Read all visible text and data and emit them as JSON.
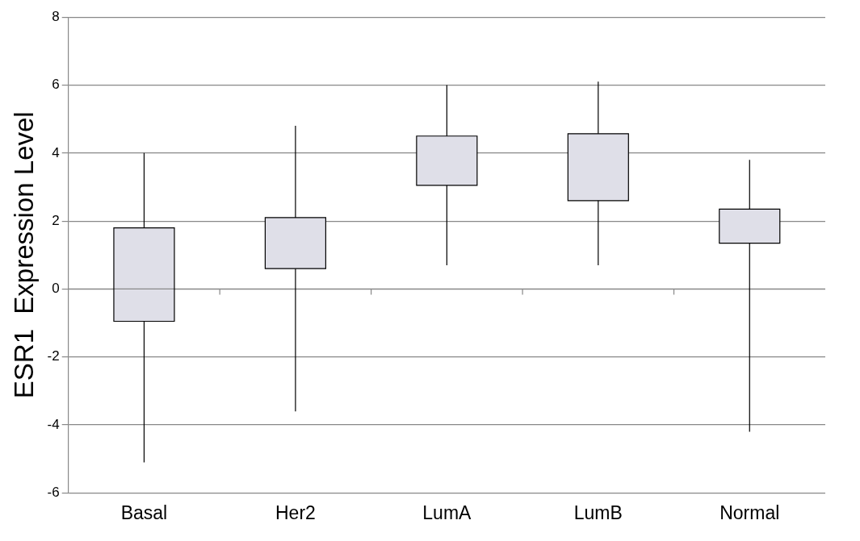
{
  "chart_data": {
    "type": "box",
    "ylabel": "ESR1  Expression Level",
    "categories": [
      "Basal",
      "Her2",
      "LumA",
      "LumB",
      "Normal"
    ],
    "boxes": [
      {
        "low": -5.1,
        "q1": -0.95,
        "q3": 1.8,
        "high": 4.0
      },
      {
        "low": -3.6,
        "q1": 0.6,
        "q3": 2.1,
        "high": 4.8
      },
      {
        "low": 0.7,
        "q1": 3.05,
        "q3": 4.5,
        "high": 6.0
      },
      {
        "low": 0.7,
        "q1": 2.6,
        "q3": 4.57,
        "high": 6.1
      },
      {
        "low": -4.2,
        "q1": 1.35,
        "q3": 2.35,
        "high": 3.8
      }
    ],
    "color": "#dfdfe8",
    "ylim": [
      -6,
      8
    ],
    "yticks": [
      -6,
      -4,
      -2,
      0,
      2,
      4,
      6,
      8
    ],
    "grid": "y",
    "legend": false
  }
}
